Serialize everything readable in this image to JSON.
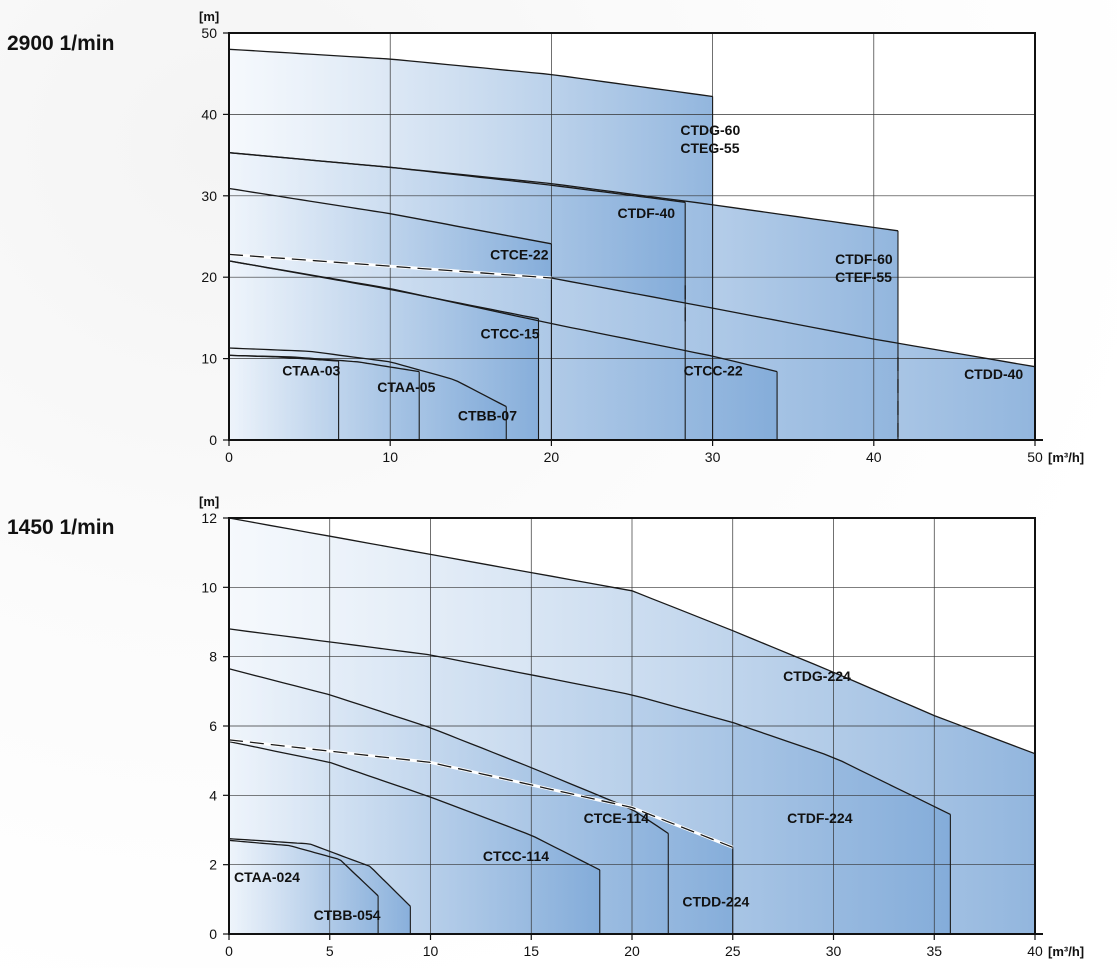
{
  "speed_labels": {
    "top": "2900 1/min",
    "bottom": "1450 1/min"
  },
  "colors": {
    "fill_light": "#eef4fb",
    "fill_dark": "#7fa9d8",
    "curve_stroke": "#1a1a1a"
  },
  "chart_data": [
    {
      "type": "area",
      "speed": "2900 1/min",
      "ylabel": "[m]",
      "xlabel": "[m³/h]",
      "xlim": [
        0,
        50
      ],
      "ylim": [
        0,
        50
      ],
      "xticks": [
        0,
        10,
        20,
        30,
        40,
        50
      ],
      "yticks": [
        0,
        10,
        20,
        30,
        40,
        50
      ],
      "grid": true,
      "series": [
        {
          "name": "CTDG-60 CTEG-55",
          "label_lines": [
            "CTDG-60",
            "CTEG-55"
          ],
          "points": [
            [
              0,
              48
            ],
            [
              10,
              46.8
            ],
            [
              20,
              44.9
            ],
            [
              30,
              42.2
            ]
          ],
          "x_max": 30,
          "label_at": [
            28,
            37.5
          ]
        },
        {
          "name": "CTDF-60 CTEF-55",
          "label_lines": [
            "CTDF-60",
            "CTEF-55"
          ],
          "points": [
            [
              0,
              35.3
            ],
            [
              10,
              33.5
            ],
            [
              20,
              31.5
            ],
            [
              30,
              28.9
            ],
            [
              41.5,
              25.7
            ]
          ],
          "x_max": 41.5,
          "label_at": [
            37.6,
            21.6
          ]
        },
        {
          "name": "CTDF-40",
          "label_lines": [
            "CTDF-40"
          ],
          "points": [
            [
              0,
              35.3
            ],
            [
              10,
              33.5
            ],
            [
              20,
              31.3
            ],
            [
              28.3,
              29.2
            ]
          ],
          "x_max": 28.3,
          "label_at": [
            24.1,
            27.3
          ]
        },
        {
          "name": "CTCE-22",
          "label_lines": [
            "CTCE-22"
          ],
          "points": [
            [
              0,
              30.9
            ],
            [
              10,
              27.8
            ],
            [
              20,
              24.1
            ]
          ],
          "x_max": 20,
          "label_at": [
            16.2,
            22.2
          ]
        },
        {
          "name": "CTDD-40",
          "label_lines": [
            "CTDD-40"
          ],
          "points": [
            [
              0,
              22.8
            ],
            [
              20,
              19.9
            ],
            [
              30,
              16.2
            ],
            [
              40,
              12.4
            ],
            [
              50,
              9.0
            ]
          ],
          "x_max": 50,
          "label_at": [
            45.6,
            7.5
          ]
        },
        {
          "name": "CTCC-22",
          "label_lines": [
            "CTCC-22"
          ],
          "points": [
            [
              0,
              22
            ],
            [
              10,
              18.6
            ],
            [
              20,
              14.3
            ],
            [
              30,
              10.3
            ],
            [
              34,
              8.4
            ]
          ],
          "x_max": 34,
          "label_at": [
            28.2,
            7.9
          ]
        },
        {
          "name": "CTCC-15",
          "label_lines": [
            "CTCC-15"
          ],
          "points": [
            [
              0,
              22
            ],
            [
              10,
              18.5
            ],
            [
              19.2,
              14.9
            ]
          ],
          "x_max": 19.2,
          "label_at": [
            15.6,
            12.5
          ]
        },
        {
          "name": "CTAA-03",
          "label_lines": [
            "CTAA-03"
          ],
          "points": [
            [
              0,
              10.4
            ],
            [
              3,
              10.2
            ],
            [
              6.8,
              9.7
            ]
          ],
          "x_max": 6.8,
          "label_at": [
            3.3,
            7.9
          ]
        },
        {
          "name": "CTAA-05",
          "label_lines": [
            "CTAA-05"
          ],
          "points": [
            [
              0,
              10.4
            ],
            [
              4,
              10.2
            ],
            [
              8,
              9.6
            ],
            [
              11.8,
              8.4
            ]
          ],
          "x_max": 11.8,
          "label_at": [
            9.2,
            5.9
          ]
        },
        {
          "name": "CTBB-07",
          "label_lines": [
            "CTBB-07"
          ],
          "points": [
            [
              0,
              11.3
            ],
            [
              5,
              10.9
            ],
            [
              10,
              9.6
            ],
            [
              14,
              7.4
            ],
            [
              17.2,
              4.1
            ]
          ],
          "x_max": 17.2,
          "label_at": [
            14.2,
            2.4
          ]
        }
      ],
      "dashed_curves": [
        {
          "points": [
            [
              0,
              22.8
            ],
            [
              20,
              19.9
            ]
          ]
        }
      ],
      "dashed_verticals": [
        {
          "x": 28.3,
          "y_from": 14,
          "y_to": 19
        },
        {
          "x": 41.5,
          "y_from": 0,
          "y_to": 10.2
        }
      ]
    },
    {
      "type": "area",
      "speed": "1450 1/min",
      "ylabel": "[m]",
      "xlabel": "[m³/h]",
      "xlim": [
        0,
        40
      ],
      "ylim": [
        0,
        12
      ],
      "xticks": [
        0,
        5,
        10,
        15,
        20,
        25,
        30,
        35,
        40
      ],
      "yticks": [
        0,
        2,
        4,
        6,
        8,
        10,
        12
      ],
      "grid": true,
      "series": [
        {
          "name": "CTDG-224",
          "label_lines": [
            "CTDG-224"
          ],
          "points": [
            [
              0,
              12
            ],
            [
              10,
              10.95
            ],
            [
              20,
              9.9
            ],
            [
              25,
              8.75
            ],
            [
              30,
              7.55
            ],
            [
              35,
              6.3
            ],
            [
              40,
              5.2
            ]
          ],
          "x_max": 40,
          "label_at": [
            27.5,
            7.3
          ]
        },
        {
          "name": "CTDF-224",
          "label_lines": [
            "CTDF-224"
          ],
          "points": [
            [
              0,
              8.8
            ],
            [
              10,
              8.05
            ],
            [
              20,
              6.9
            ],
            [
              25,
              6.1
            ],
            [
              30,
              5.1
            ],
            [
              35.8,
              3.45
            ]
          ],
          "x_max": 35.8,
          "label_at": [
            27.7,
            3.2
          ]
        },
        {
          "name": "CTCE-114",
          "label_lines": [
            "CTCE-114"
          ],
          "points": [
            [
              0,
              7.65
            ],
            [
              5,
              6.9
            ],
            [
              10,
              5.95
            ],
            [
              15,
              4.8
            ],
            [
              20,
              3.6
            ],
            [
              21.8,
              2.9
            ]
          ],
          "x_max": 21.8,
          "label_at": [
            17.6,
            3.2
          ]
        },
        {
          "name": "CTDD-224",
          "label_lines": [
            "CTDD-224"
          ],
          "points": [
            [
              0,
              5.6
            ],
            [
              10,
              4.95
            ],
            [
              20,
              3.65
            ],
            [
              25,
              2.5
            ]
          ],
          "x_max": 25,
          "label_at": [
            22.5,
            0.8
          ]
        },
        {
          "name": "CTCC-114",
          "label_lines": [
            "CTCC-114"
          ],
          "points": [
            [
              0,
              5.55
            ],
            [
              5,
              4.95
            ],
            [
              10,
              3.95
            ],
            [
              15,
              2.85
            ],
            [
              18.4,
              1.85
            ]
          ],
          "x_max": 18.4,
          "label_at": [
            12.6,
            2.1
          ]
        },
        {
          "name": "CTAA-024",
          "label_lines": [
            "CTAA-024"
          ],
          "points": [
            [
              0,
              2.7
            ],
            [
              3,
              2.55
            ],
            [
              5.5,
              2.15
            ],
            [
              7.4,
              1.1
            ]
          ],
          "x_max": 7.4,
          "label_at": [
            0.25,
            1.5
          ]
        },
        {
          "name": "CTBB-054",
          "label_lines": [
            "CTBB-054"
          ],
          "points": [
            [
              0,
              2.75
            ],
            [
              4,
              2.6
            ],
            [
              7,
              1.95
            ],
            [
              9,
              0.8
            ]
          ],
          "x_max": 9,
          "label_at": [
            4.2,
            0.4
          ]
        }
      ],
      "dashed_curves": [
        {
          "points": [
            [
              0,
              5.6
            ],
            [
              10,
              4.95
            ],
            [
              20,
              3.65
            ],
            [
              25,
              2.5
            ]
          ]
        }
      ],
      "dashed_verticals": []
    }
  ]
}
